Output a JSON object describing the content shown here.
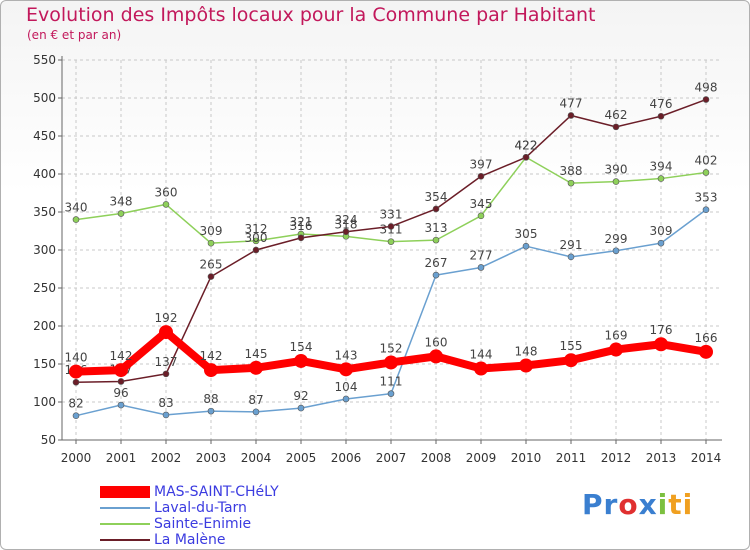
{
  "title": "Evolution des Impôts locaux pour la Commune par Habitant",
  "subtitle": "(en € et par an)",
  "logo": {
    "p": "Pr",
    "o": "o",
    "x": "x",
    "i": "i",
    "t": "ti"
  },
  "chart_data": {
    "type": "line",
    "title": "Evolution des Impôts locaux pour la Commune par Habitant",
    "ylabel": "(en € et par an)",
    "xlabel": "",
    "ylim": [
      50,
      550
    ],
    "yticks": [
      50,
      100,
      150,
      200,
      250,
      300,
      350,
      400,
      450,
      500,
      550
    ],
    "categories": [
      "2000",
      "2001",
      "2002",
      "2003",
      "2004",
      "2005",
      "2006",
      "2007",
      "2008",
      "2009",
      "2010",
      "2011",
      "2012",
      "2013",
      "2014"
    ],
    "series": [
      {
        "name": "MAS-SAINT-CHéLY",
        "color": "#ff0000",
        "emphasis": true,
        "values": [
          140,
          142,
          192,
          142,
          145,
          154,
          143,
          152,
          160,
          144,
          148,
          155,
          169,
          176,
          166
        ]
      },
      {
        "name": "Laval-du-Tarn",
        "color": "#6aa0d0",
        "values": [
          82,
          96,
          83,
          88,
          87,
          92,
          104,
          111,
          267,
          277,
          305,
          291,
          299,
          309,
          353
        ]
      },
      {
        "name": "Sainte-Enimie",
        "color": "#8ed05a",
        "values": [
          340,
          348,
          360,
          309,
          312,
          321,
          318,
          311,
          313,
          345,
          422,
          388,
          390,
          394,
          402
        ]
      },
      {
        "name": "La Malène",
        "color": "#6b1e28",
        "values": [
          126,
          127,
          137,
          265,
          300,
          316,
          324,
          331,
          354,
          397,
          422,
          477,
          462,
          476,
          498
        ]
      }
    ]
  }
}
